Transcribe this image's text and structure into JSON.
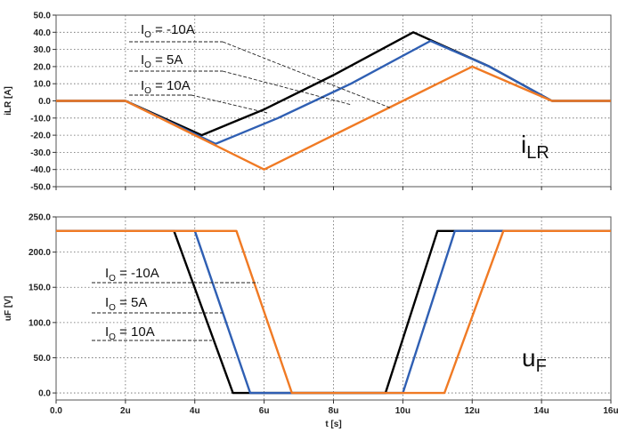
{
  "chart_data": [
    {
      "type": "line",
      "ylabel": "iLR [A]",
      "ylim": [
        -50,
        50
      ],
      "yticks": [
        "50.0",
        "40.0",
        "30.0",
        "20.0",
        "10.0",
        "0.0",
        "-10.0",
        "-20.0",
        "-30.0",
        "-40.0",
        "-50.0"
      ],
      "xlim": [
        0,
        16
      ],
      "grid": true,
      "big_label": {
        "main": "i",
        "sub": "LR"
      },
      "annotations": [
        {
          "main": "I",
          "sub": "O",
          "rest": " = -10A"
        },
        {
          "main": "I",
          "sub": "O",
          "rest": " = 5A"
        },
        {
          "main": "I",
          "sub": "O",
          "rest": " = 10A"
        }
      ],
      "series": [
        {
          "color": "#000000",
          "x": [
            0,
            2,
            4.2,
            6,
            8,
            10.3,
            12.5,
            14.3,
            16
          ],
          "y": [
            0,
            0,
            -20,
            -5,
            15,
            40,
            20,
            0,
            0
          ]
        },
        {
          "color": "#2f5fb3",
          "x": [
            0,
            2,
            4.6,
            6.4,
            8.5,
            10.8,
            12.5,
            14.3,
            16
          ],
          "y": [
            0,
            0,
            -25,
            -10,
            10,
            35,
            20,
            0,
            0
          ]
        },
        {
          "color": "#f07a24",
          "x": [
            0,
            2,
            6,
            8,
            10,
            12,
            14.3,
            16
          ],
          "y": [
            0,
            0,
            -40,
            -20,
            0,
            20,
            0,
            0
          ]
        }
      ]
    },
    {
      "type": "line",
      "ylabel": "uF [V]",
      "xlabel": "t [s]",
      "ylim": [
        -10,
        250
      ],
      "yticks": [
        "250.0",
        "200.0",
        "150.0",
        "100.0",
        "50.0",
        "0.0"
      ],
      "xlim": [
        0,
        16
      ],
      "xticks": [
        "0.0",
        "2u",
        "4u",
        "6u",
        "8u",
        "10u",
        "12u",
        "14u",
        "16u"
      ],
      "grid": true,
      "big_label": {
        "main": "u",
        "sub": "F"
      },
      "annotations": [
        {
          "main": "I",
          "sub": "O",
          "rest": " = -10A"
        },
        {
          "main": "I",
          "sub": "O",
          "rest": " = 5A"
        },
        {
          "main": "I",
          "sub": "O",
          "rest": " = 10A"
        }
      ],
      "series": [
        {
          "color": "#000000",
          "x": [
            0,
            3.4,
            5.1,
            9.5,
            11.0,
            16
          ],
          "y": [
            230,
            230,
            0,
            0,
            230,
            230
          ]
        },
        {
          "color": "#2f5fb3",
          "x": [
            0,
            4.0,
            5.6,
            10.0,
            11.5,
            16
          ],
          "y": [
            230,
            230,
            0,
            0,
            230,
            230
          ]
        },
        {
          "color": "#f07a24",
          "x": [
            0,
            5.2,
            6.8,
            11.2,
            12.9,
            16
          ],
          "y": [
            230,
            230,
            0,
            0,
            230,
            230
          ]
        }
      ]
    }
  ]
}
